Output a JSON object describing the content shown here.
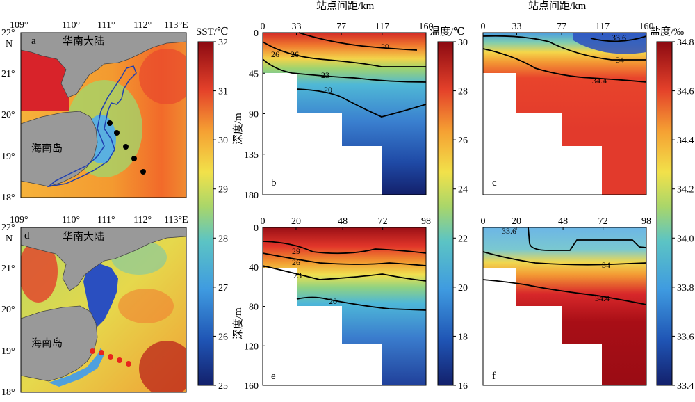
{
  "figure": {
    "maps": [
      {
        "panel": "a",
        "lon_ticks": [
          "109°",
          "110°",
          "111°",
          "112°",
          "113°E"
        ],
        "lat_ticks": [
          "22°",
          "21°",
          "20°",
          "19°",
          "18°"
        ],
        "north_label": "N",
        "land_labels": [
          "华南大陆",
          "海南岛"
        ],
        "station_color": "#000000",
        "station_count": 5
      },
      {
        "panel": "d",
        "lon_ticks": [
          "109°",
          "110°",
          "111°",
          "112°",
          "113°E"
        ],
        "lat_ticks": [
          "22°",
          "21°",
          "20°",
          "19°",
          "18°"
        ],
        "north_label": "N",
        "land_labels": [
          "华南大陆",
          "海南岛"
        ],
        "station_color": "#e8241c",
        "station_count": 5
      }
    ],
    "sst_colorbar": {
      "label": "SST/℃",
      "ticks": [
        "32",
        "31",
        "30",
        "29",
        "28",
        "27",
        "26",
        "25"
      ]
    },
    "temp_colorbar": {
      "label": "温度/℃",
      "ticks": [
        "30",
        "28",
        "26",
        "24",
        "22",
        "20",
        "18",
        "16"
      ]
    },
    "salt_colorbar": {
      "label": "盐度/‰",
      "ticks": [
        "34.8",
        "34.6",
        "34.4",
        "34.2",
        "34.0",
        "33.8",
        "33.6",
        "33.4"
      ]
    },
    "section_top_xlabel": "站点间距/km",
    "section_ylabel": "深度/m"
  },
  "chart_data": [
    {
      "type": "heatmap",
      "panel": "b",
      "variable": "温度",
      "x_ticks": [
        "0",
        "33",
        "77",
        "117",
        "160"
      ],
      "y_ticks": [
        "0",
        "45",
        "90",
        "135",
        "180"
      ],
      "xlim": [
        0,
        160
      ],
      "ylim": [
        0,
        180
      ],
      "colorbar_range": [
        16,
        30
      ],
      "contour_labels": [
        "29",
        "26",
        "23",
        "20"
      ]
    },
    {
      "type": "heatmap",
      "panel": "c",
      "variable": "盐度",
      "x_ticks": [
        "0",
        "33",
        "77",
        "117",
        "160"
      ],
      "xlim": [
        0,
        160
      ],
      "ylim": [
        0,
        180
      ],
      "colorbar_range": [
        33.4,
        34.8
      ],
      "contour_labels": [
        "33.6",
        "34",
        "34.4"
      ]
    },
    {
      "type": "heatmap",
      "panel": "e",
      "variable": "温度",
      "x_ticks": [
        "0",
        "20",
        "48",
        "72",
        "98"
      ],
      "y_ticks": [
        "0",
        "40",
        "80",
        "120",
        "160"
      ],
      "xlim": [
        0,
        98
      ],
      "ylim": [
        0,
        160
      ],
      "colorbar_range": [
        16,
        30
      ],
      "contour_labels": [
        "29",
        "26",
        "23",
        "20"
      ]
    },
    {
      "type": "heatmap",
      "panel": "f",
      "variable": "盐度",
      "x_ticks": [
        "0",
        "20",
        "48",
        "72",
        "98"
      ],
      "xlim": [
        0,
        98
      ],
      "ylim": [
        0,
        160
      ],
      "colorbar_range": [
        33.4,
        34.8
      ],
      "contour_labels": [
        "33.6",
        "34",
        "34.4"
      ]
    }
  ]
}
